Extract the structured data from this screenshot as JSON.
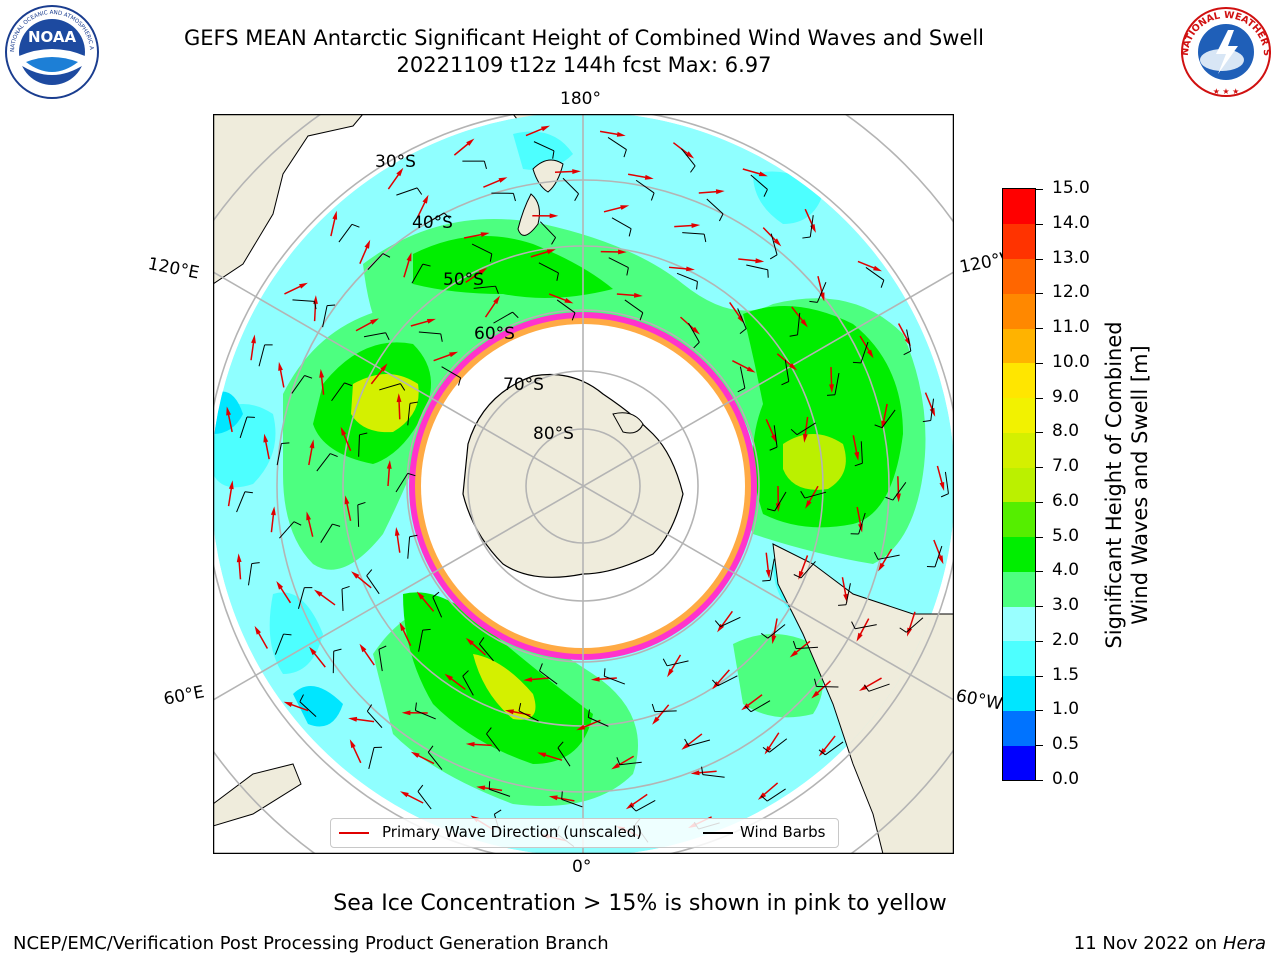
{
  "title": {
    "line1": "GEFS MEAN Antarctic Significant Height of Combined Wind Waves and Swell",
    "line2": "20221109 t12z 144h fcst   Max: 6.97"
  },
  "logos": {
    "noaa": {
      "text": "NOAA",
      "ring_text": "NATIONAL OCEANIC AND ATMOSPHERIC ADMINISTRATION · U.S. DEPARTMENT OF COMMERCE"
    },
    "nws": {
      "ring_text": "NATIONAL WEATHER SERVICE"
    }
  },
  "map": {
    "projection": "south polar stereographic",
    "longitude_labels": {
      "top": "180°",
      "bottom": "0°",
      "left_upper": "120°E",
      "left_lower": "60°E",
      "right_upper": "120°W",
      "right_lower": "60°W"
    },
    "latitude_labels": [
      "30°S",
      "40°S",
      "50°S",
      "60°S",
      "70°S",
      "80°S"
    ],
    "legend": {
      "primary_wave": "Primary Wave Direction (unscaled)",
      "wind_barbs": "Wind Barbs"
    },
    "colors": {
      "land": "#efecdc",
      "ice_edge": "#ff33cc",
      "ice_inner": "#ffaa44",
      "wave_arrow": "#e00000",
      "grid": "#b4b4b4"
    }
  },
  "colorbar": {
    "label_line1": "Significant Height of Combined",
    "label_line2": "Wind Waves and Swell [m]",
    "ticks": [
      "0.0",
      "0.5",
      "1.0",
      "1.5",
      "2.0",
      "3.0",
      "4.0",
      "5.0",
      "6.0",
      "7.0",
      "8.0",
      "9.0",
      "10.0",
      "11.0",
      "12.0",
      "13.0",
      "14.0",
      "15.0"
    ],
    "colors": [
      "#0000ff",
      "#0073ff",
      "#00e6ff",
      "#4dffff",
      "#99ffff",
      "#4dff80",
      "#00ee00",
      "#55ee00",
      "#bbf000",
      "#d4f000",
      "#f2f200",
      "#ffe600",
      "#ffb300",
      "#ff8800",
      "#ff6600",
      "#ff3300",
      "#ff0000"
    ]
  },
  "footer": {
    "sea_ice_note": "Sea Ice Concentration > 15% is shown in pink to yellow",
    "credit": "NCEP/EMC/Verification Post Processing Product Generation Branch",
    "date": "11 Nov 2022 on",
    "host": "Hera"
  }
}
